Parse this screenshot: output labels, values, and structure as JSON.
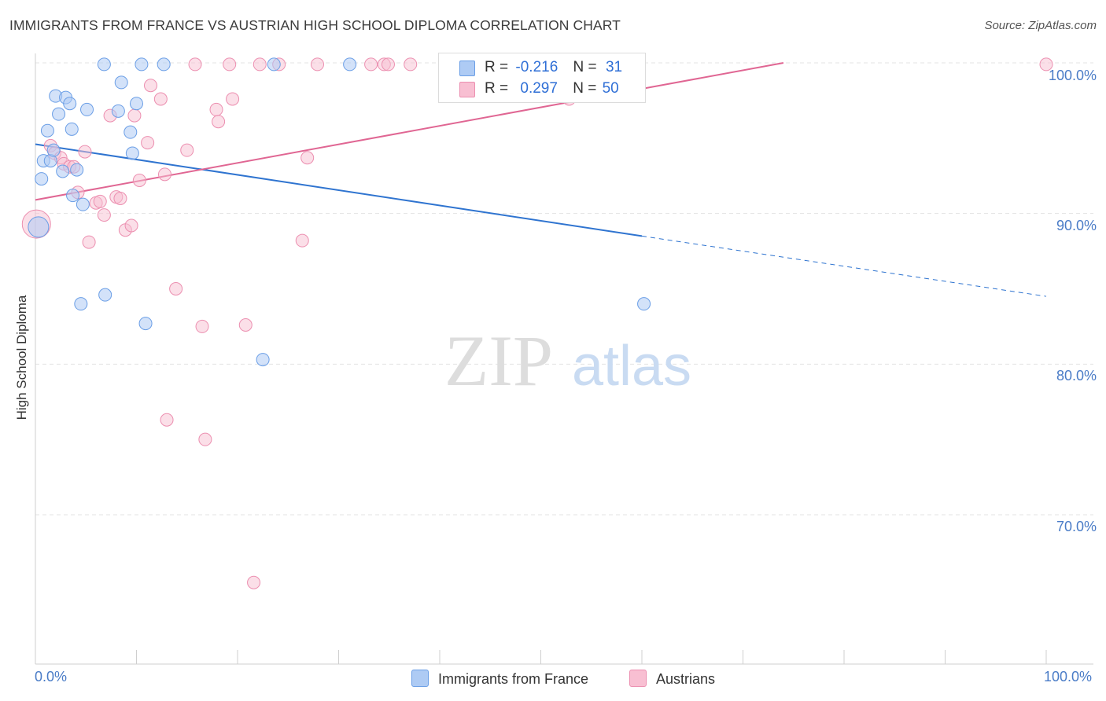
{
  "title": "IMMIGRANTS FROM FRANCE VS AUSTRIAN HIGH SCHOOL DIPLOMA CORRELATION CHART",
  "source": "Source: ZipAtlas.com",
  "watermark": {
    "zip": "ZIP",
    "atlas": "atlas"
  },
  "legend": {
    "r_label": "R =",
    "n_label": "N =",
    "france": {
      "r": "-0.216",
      "n": "31"
    },
    "austrians": {
      "r": "0.297",
      "n": "50"
    }
  },
  "bottom_legend": {
    "france": "Immigrants from France",
    "austrians": "Austrians"
  },
  "colors": {
    "france_fill": "#aecbf4",
    "france_stroke": "#6a9ee6",
    "france_line": "#2f74d0",
    "austrians_fill": "#f8bfd2",
    "austrians_stroke": "#ec8fb0",
    "austrians_line": "#e06693",
    "tick_text": "#4a7cc7",
    "grid": "#e3e3e3"
  },
  "chart_data": {
    "type": "scatter",
    "title": "IMMIGRANTS FROM FRANCE VS AUSTRIAN HIGH SCHOOL DIPLOMA CORRELATION CHART",
    "xlabel": "",
    "ylabel": "High School Diploma",
    "xlim": [
      0,
      100
    ],
    "ylim": [
      60.0,
      101.5
    ],
    "x_tick_labels": [
      "0.0%",
      "100.0%"
    ],
    "y_ticks": [
      70,
      80,
      90,
      100
    ],
    "y_tick_labels": [
      "70.0%",
      "80.0%",
      "90.0%",
      "100.0%"
    ],
    "series": [
      {
        "name": "Immigrants from France",
        "r": -0.216,
        "n": 31,
        "points": [
          [
            0.3,
            89.1
          ],
          [
            0.6,
            92.3
          ],
          [
            0.8,
            93.5
          ],
          [
            1.2,
            95.5
          ],
          [
            1.5,
            93.5
          ],
          [
            1.8,
            94.2
          ],
          [
            2.0,
            97.8
          ],
          [
            2.3,
            96.6
          ],
          [
            2.7,
            92.8
          ],
          [
            3.0,
            97.7
          ],
          [
            3.4,
            97.3
          ],
          [
            3.6,
            95.6
          ],
          [
            3.7,
            91.2
          ],
          [
            4.1,
            92.9
          ],
          [
            4.5,
            84.0
          ],
          [
            4.7,
            90.6
          ],
          [
            5.1,
            96.9
          ],
          [
            6.9,
            84.6
          ],
          [
            6.8,
            99.9
          ],
          [
            8.2,
            96.8
          ],
          [
            8.5,
            98.7
          ],
          [
            9.4,
            95.4
          ],
          [
            9.6,
            94.0
          ],
          [
            10.0,
            97.3
          ],
          [
            10.9,
            82.7
          ],
          [
            10.5,
            99.9
          ],
          [
            12.7,
            99.9
          ],
          [
            22.5,
            80.3
          ],
          [
            23.6,
            99.9
          ],
          [
            31.1,
            99.9
          ],
          [
            60.2,
            84.0
          ]
        ],
        "trend": {
          "x0": 0,
          "y0": 94.6,
          "x1": 60,
          "y1": 88.5,
          "dashed_to_x": 100,
          "dashed_to_y": 84.5
        }
      },
      {
        "name": "Austrians",
        "r": 0.297,
        "n": 50,
        "points": [
          [
            0.1,
            89.3
          ],
          [
            1.5,
            94.5
          ],
          [
            1.9,
            94.0
          ],
          [
            2.5,
            93.7
          ],
          [
            2.8,
            93.3
          ],
          [
            3.4,
            93.1
          ],
          [
            3.8,
            93.1
          ],
          [
            4.2,
            91.4
          ],
          [
            4.9,
            94.1
          ],
          [
            5.3,
            88.1
          ],
          [
            6.0,
            90.7
          ],
          [
            6.4,
            90.8
          ],
          [
            6.8,
            89.9
          ],
          [
            7.4,
            96.5
          ],
          [
            8.0,
            91.1
          ],
          [
            8.4,
            91.0
          ],
          [
            8.9,
            88.9
          ],
          [
            9.5,
            89.2
          ],
          [
            9.8,
            96.5
          ],
          [
            10.3,
            92.2
          ],
          [
            11.1,
            94.7
          ],
          [
            11.4,
            98.5
          ],
          [
            12.4,
            97.6
          ],
          [
            12.8,
            92.6
          ],
          [
            13.9,
            85.0
          ],
          [
            13.0,
            76.3
          ],
          [
            15.0,
            94.2
          ],
          [
            15.8,
            99.9
          ],
          [
            16.5,
            82.5
          ],
          [
            16.8,
            75.0
          ],
          [
            17.9,
            96.9
          ],
          [
            18.1,
            96.1
          ],
          [
            19.2,
            99.9
          ],
          [
            19.5,
            97.6
          ],
          [
            20.8,
            82.6
          ],
          [
            21.6,
            65.5
          ],
          [
            22.2,
            99.9
          ],
          [
            24.1,
            99.9
          ],
          [
            26.4,
            88.2
          ],
          [
            26.9,
            93.7
          ],
          [
            27.9,
            99.9
          ],
          [
            33.2,
            99.9
          ],
          [
            34.5,
            99.9
          ],
          [
            34.9,
            99.9
          ],
          [
            37.1,
            99.9
          ],
          [
            41.6,
            99.9
          ],
          [
            47.4,
            99.9
          ],
          [
            52.5,
            99.9
          ],
          [
            52.8,
            97.6
          ],
          [
            100.0,
            99.9
          ]
        ],
        "trend": {
          "x0": 0,
          "y0": 90.9,
          "x1": 74,
          "y1": 100.0
        }
      }
    ]
  }
}
